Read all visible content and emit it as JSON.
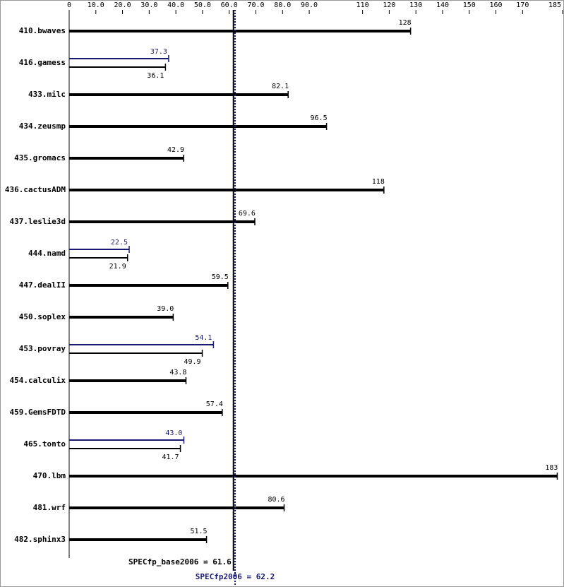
{
  "chart_data": {
    "type": "bar",
    "orientation": "horizontal",
    "categories": [
      "410.bwaves",
      "416.gamess",
      "433.milc",
      "434.zeusmp",
      "435.gromacs",
      "436.cactusADM",
      "437.leslie3d",
      "444.namd",
      "447.dealII",
      "450.soplex",
      "453.povray",
      "454.calculix",
      "459.GemsFDTD",
      "465.tonto",
      "470.lbm",
      "481.wrf",
      "482.sphinx3"
    ],
    "series": [
      {
        "color": "#000000",
        "values": [
          128,
          36.1,
          82.1,
          96.5,
          42.9,
          118,
          69.6,
          21.9,
          59.5,
          39.0,
          49.9,
          43.8,
          57.4,
          41.7,
          183,
          80.6,
          51.5
        ],
        "value_labels": [
          "128",
          "36.1",
          "82.1",
          "96.5",
          "42.9",
          "118",
          "69.6",
          "21.9",
          "59.5",
          "39.0",
          "49.9",
          "43.8",
          "57.4",
          "41.7",
          "183",
          "80.6",
          "51.5"
        ]
      },
      {
        "color": "#191970",
        "values": [
          null,
          37.3,
          null,
          null,
          null,
          null,
          null,
          22.5,
          null,
          null,
          54.1,
          null,
          null,
          43.0,
          null,
          null,
          null
        ],
        "value_labels": [
          null,
          "37.3",
          null,
          null,
          null,
          null,
          null,
          "22.5",
          null,
          null,
          "54.1",
          null,
          null,
          "43.0",
          null,
          null,
          null
        ]
      }
    ],
    "xlim": [
      0,
      185
    ],
    "xticks": [
      0,
      {
        "value": 10,
        "label": "10.0"
      },
      {
        "value": 20,
        "label": "20.0"
      },
      {
        "value": 30,
        "label": "30.0"
      },
      {
        "value": 40,
        "label": "40.0"
      },
      {
        "value": 50,
        "label": "50.0"
      },
      {
        "value": 60,
        "label": "60.0"
      },
      {
        "value": 70,
        "label": "70.0"
      },
      {
        "value": 80,
        "label": "80.0"
      },
      {
        "value": 90,
        "label": "90.0"
      },
      110,
      120,
      130,
      140,
      150,
      160,
      170,
      185
    ],
    "reference_lines": [
      {
        "label": "SPECfp_base2006 = 61.6",
        "value": 61.6,
        "color": "#000000",
        "style": "solid"
      },
      {
        "label": "SPECfp2006 = 62.2",
        "value": 62.2,
        "color": "#191970",
        "style": "dotted"
      }
    ]
  }
}
